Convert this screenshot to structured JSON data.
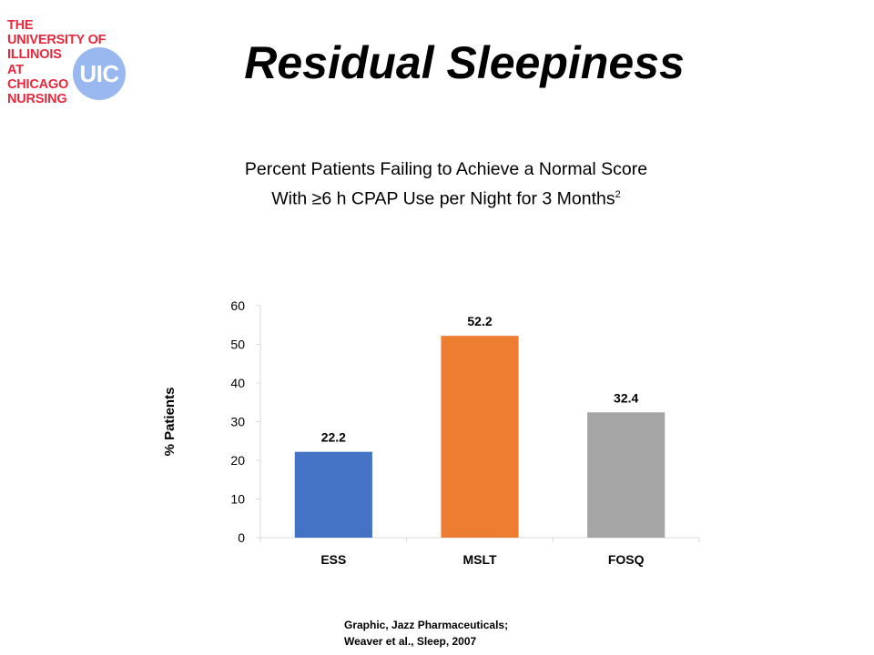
{
  "logo": {
    "lines": [
      "THE",
      "UNIVERSITY OF",
      "ILLINOIS",
      "AT",
      "CHICAGO",
      "NURSING"
    ],
    "badge": "UIC",
    "text_color": "#e8283c",
    "badge_color": "#99b8f0"
  },
  "title": "Residual Sleepiness",
  "subtitle": {
    "text": "Percent Patients Failing to Achieve a Normal Score With ≥6 h CPAP Use per Night for 3 Months",
    "superscript": "2"
  },
  "chart_data": {
    "type": "bar",
    "categories": [
      "ESS",
      "MSLT",
      "FOSQ"
    ],
    "values": [
      22.2,
      52.2,
      32.4
    ],
    "data_labels": [
      "22.2",
      "52.2",
      "32.4"
    ],
    "colors": [
      "#4472c4",
      "#ed7d31",
      "#a5a5a5"
    ],
    "ylabel": "% Patients",
    "ylim": [
      0,
      60
    ],
    "yticks": [
      0,
      10,
      20,
      30,
      40,
      50,
      60
    ],
    "grid": false,
    "legend": "none"
  },
  "source": {
    "lines": [
      "Graphic, Jazz Pharmaceuticals;",
      "Weaver et al., Sleep, 2007"
    ]
  }
}
